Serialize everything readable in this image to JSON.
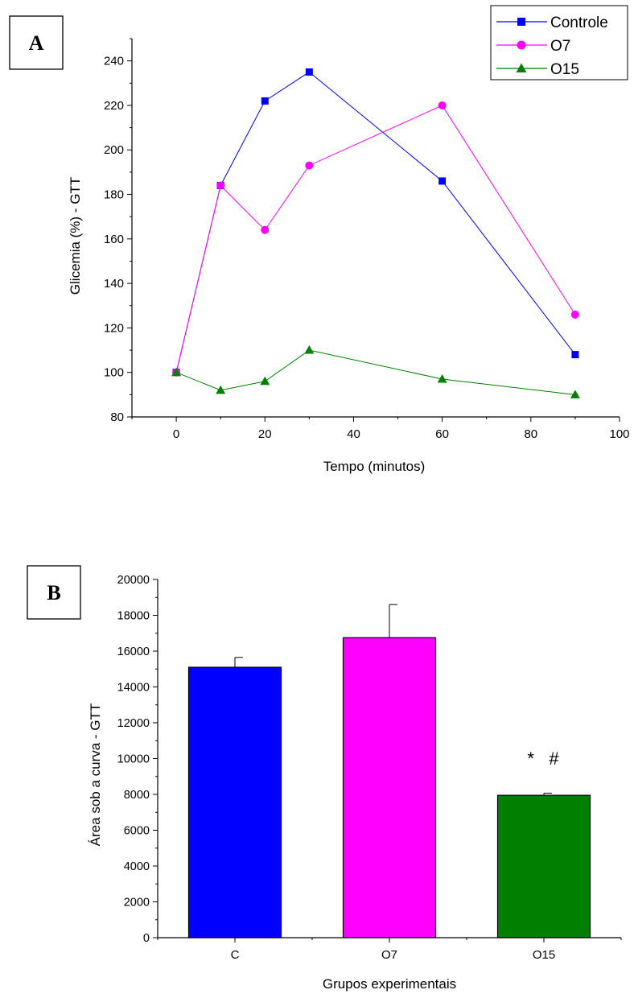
{
  "chart_data": [
    {
      "type": "line",
      "panel_label": "A",
      "xlabel": "Tempo (minutos)",
      "ylabel": "Glicemia (%) - GTT",
      "xlim": [
        -10,
        100
      ],
      "ylim": [
        80,
        250
      ],
      "xticks": [
        0,
        20,
        40,
        60,
        80,
        100
      ],
      "yticks": [
        80,
        100,
        120,
        140,
        160,
        180,
        200,
        220,
        240
      ],
      "legend_position": "top-right",
      "x": [
        0,
        10,
        20,
        30,
        60,
        90
      ],
      "series": [
        {
          "name": "Controle",
          "color": "#0000ff",
          "marker": "square",
          "values": [
            100,
            184,
            222,
            235,
            186,
            108
          ]
        },
        {
          "name": "O7",
          "color": "#ff00ff",
          "marker": "circle",
          "values": [
            100,
            184,
            164,
            193,
            220,
            126
          ]
        },
        {
          "name": "O15",
          "color": "#007f00",
          "marker": "triangle",
          "values": [
            100,
            92,
            96,
            110,
            97,
            90
          ]
        }
      ]
    },
    {
      "type": "bar",
      "panel_label": "B",
      "xlabel": "Grupos experimentais",
      "ylabel": "Área sob a curva - GTT",
      "ylim": [
        0,
        20000
      ],
      "yticks": [
        0,
        2000,
        4000,
        6000,
        8000,
        10000,
        12000,
        14000,
        16000,
        18000,
        20000
      ],
      "categories": [
        "C",
        "O7",
        "O15"
      ],
      "values": [
        15100,
        16750,
        7950
      ],
      "errors": [
        550,
        1850,
        120
      ],
      "colors": [
        "#0000ff",
        "#ff00ff",
        "#007f00"
      ],
      "annotations": [
        {
          "category": "O15",
          "text": "*   #"
        }
      ]
    }
  ]
}
